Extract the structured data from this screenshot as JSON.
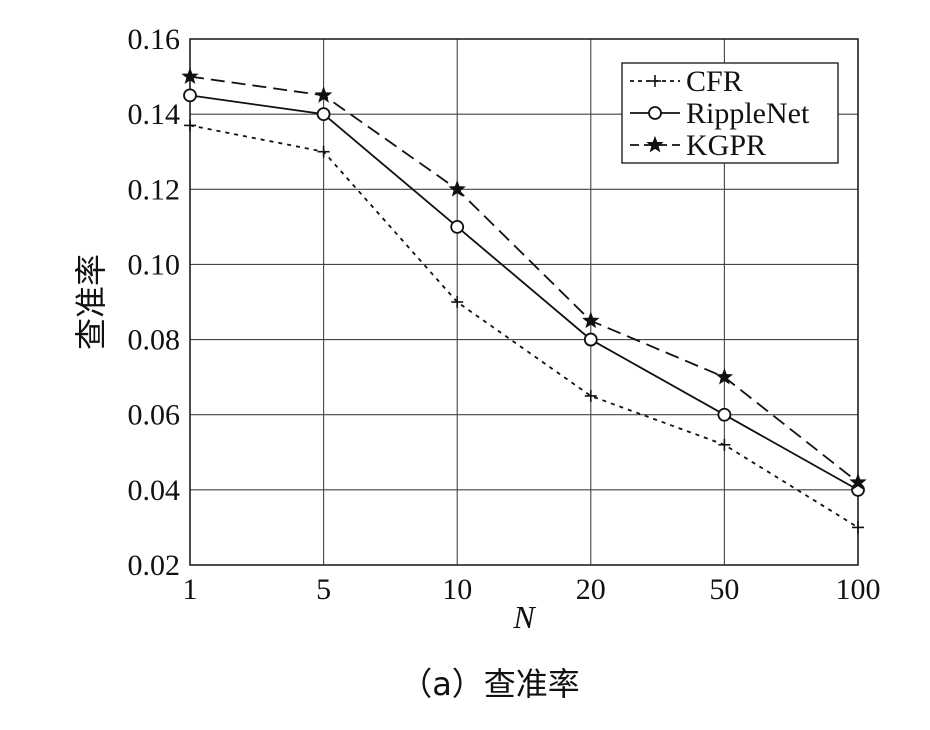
{
  "chart_data": {
    "type": "line",
    "title": "",
    "caption": "（a）查准率",
    "xlabel": "N",
    "ylabel": "查准率",
    "categories": [
      "1",
      "5",
      "10",
      "20",
      "50",
      "100"
    ],
    "ylim": [
      0.02,
      0.16
    ],
    "yticks": [
      0.02,
      0.04,
      0.06,
      0.08,
      0.1,
      0.12,
      0.14,
      0.16
    ],
    "ytick_labels": [
      "0.02",
      "0.04",
      "0.06",
      "0.08",
      "0.10",
      "0.12",
      "0.14",
      "0.16"
    ],
    "grid": true,
    "legend_position": "top-right",
    "series": [
      {
        "name": "CFR",
        "values": [
          0.137,
          0.13,
          0.09,
          0.065,
          0.052,
          0.03
        ],
        "marker": "plus",
        "line_style": "dotted",
        "color": "#111111"
      },
      {
        "name": "RippleNet",
        "values": [
          0.145,
          0.14,
          0.11,
          0.08,
          0.06,
          0.04
        ],
        "marker": "circle",
        "line_style": "solid",
        "color": "#111111"
      },
      {
        "name": "KGPR",
        "values": [
          0.15,
          0.145,
          0.12,
          0.085,
          0.07,
          0.042
        ],
        "marker": "star",
        "line_style": "dashed",
        "color": "#111111"
      }
    ]
  }
}
